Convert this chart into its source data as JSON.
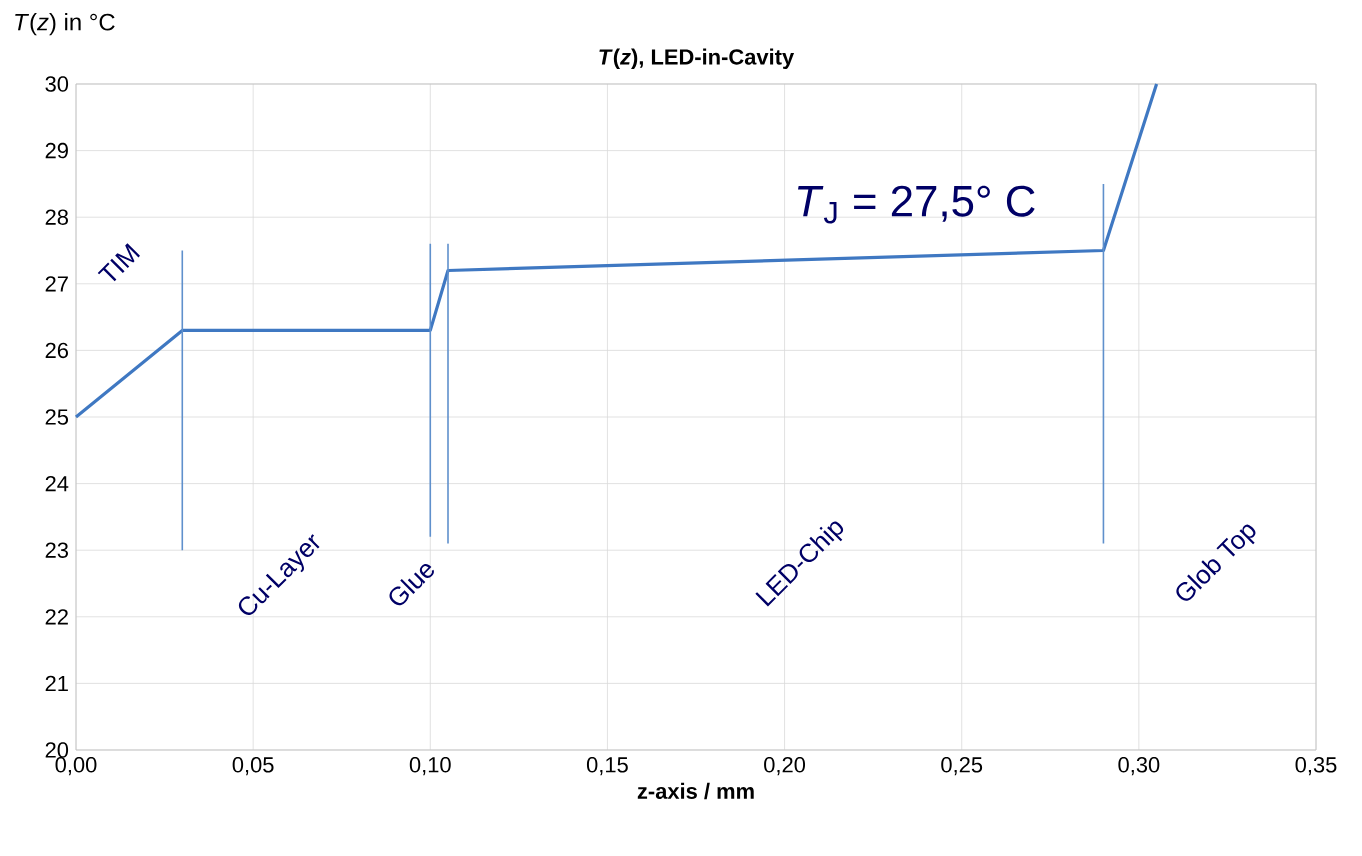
{
  "chart_data": {
    "type": "line",
    "title": "*T*(*z*), LED-in-Cavity",
    "xlabel": "z-axis / mm",
    "ylabel": "*T*(*z*) in °C",
    "xlim": [
      0,
      0.35
    ],
    "xticks": [
      {
        "value": 0,
        "label": "0,00"
      },
      {
        "value": 0.05,
        "label": "0,05"
      },
      {
        "value": 0.1,
        "label": "0,10"
      },
      {
        "value": 0.15,
        "label": "0,15"
      },
      {
        "value": 0.2,
        "label": "0,20"
      },
      {
        "value": 0.25,
        "label": "0,25"
      },
      {
        "value": 0.3,
        "label": "0,30"
      },
      {
        "value": 0.35,
        "label": "0,35"
      }
    ],
    "ylim": [
      20,
      30
    ],
    "yticks": [
      20,
      21,
      22,
      23,
      24,
      25,
      26,
      27,
      28,
      29,
      30
    ],
    "grid": true,
    "marker": "none",
    "line_style": "solid",
    "series": [
      {
        "color": "#3f78c2",
        "x": [
          0,
          0.03,
          0.1,
          0.105,
          0.29,
          0.305
        ],
        "values": [
          25,
          26.3,
          26.3,
          27.2,
          27.5,
          30
        ]
      },
      {
        "color": "#5f90cc",
        "x": [
          0.03,
          0.03
        ],
        "values": [
          23,
          27.5
        ]
      },
      {
        "color": "#5f90cc",
        "x": [
          0.1,
          0.1
        ],
        "values": [
          23.2,
          27.6
        ]
      },
      {
        "color": "#5f90cc",
        "x": [
          0.105,
          0.105
        ],
        "values": [
          23.1,
          27.6
        ]
      },
      {
        "color": "#5f90cc",
        "x": [
          0.29,
          0.29
        ],
        "values": [
          23.1,
          28.5
        ]
      }
    ],
    "annotations": [
      {
        "text": "*T*$_{J}$ = 27,5°  C",
        "x": 0.29,
        "y": 27.5
      },
      "TIM",
      "Cu-Layer",
      "Glue",
      "LED-Chip",
      "Glob Top"
    ]
  }
}
